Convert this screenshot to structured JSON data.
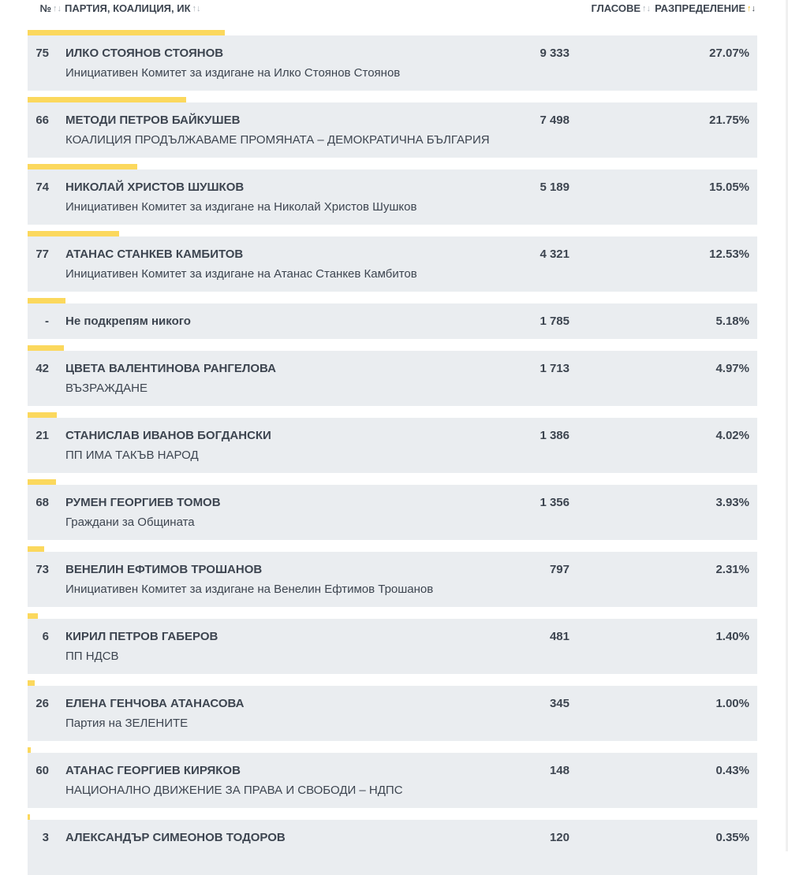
{
  "header": {
    "num": "№",
    "party": "ПАРТИЯ, КОАЛИЦИЯ, ИК",
    "votes": "ГЛАСОВЕ",
    "distribution": "РАЗПРЕДЕЛЕНИЕ",
    "sort_icon": "↑↓"
  },
  "colors": {
    "bar": "#fbd85d",
    "row_bg": "#eaedf0",
    "text": "#3d4550",
    "sort_active": "#f2b300"
  },
  "rows": [
    {
      "num": "75",
      "name": "ИЛКО СТОЯНОВ СТОЯНОВ",
      "sub": "Инициативен Комитет за издигане на Илко Стоянов Стоянов",
      "votes": "9 333",
      "pct": "27.07%",
      "share": 27.07
    },
    {
      "num": "66",
      "name": "МЕТОДИ ПЕТРОВ БАЙКУШЕВ",
      "sub": "КОАЛИЦИЯ ПРОДЪЛЖАВАМЕ ПРОМЯНАТА – ДЕМОКРАТИЧНА БЪЛГАРИЯ",
      "votes": "7 498",
      "pct": "21.75%",
      "share": 21.75
    },
    {
      "num": "74",
      "name": "НИКОЛАЙ ХРИСТОВ ШУШКОВ",
      "sub": "Инициативен Комитет за издигане на Николай Христов Шушков",
      "votes": "5 189",
      "pct": "15.05%",
      "share": 15.05
    },
    {
      "num": "77",
      "name": "АТАНАС СТАНКЕВ КАМБИТОВ",
      "sub": "Инициативен Комитет за издигане на Атанас Станкев Камбитов",
      "votes": "4 321",
      "pct": "12.53%",
      "share": 12.53
    },
    {
      "num": "-",
      "name": "Не подкрепям никого",
      "sub": "",
      "votes": "1 785",
      "pct": "5.18%",
      "share": 5.18
    },
    {
      "num": "42",
      "name": "ЦВЕТА ВАЛЕНТИНОВА РАНГЕЛОВА",
      "sub": "ВЪЗРАЖДАНЕ",
      "votes": "1 713",
      "pct": "4.97%",
      "share": 4.97
    },
    {
      "num": "21",
      "name": "СТАНИСЛАВ ИВАНОВ БОГДАНСКИ",
      "sub": "ПП ИМА ТАКЪВ НАРОД",
      "votes": "1 386",
      "pct": "4.02%",
      "share": 4.02
    },
    {
      "num": "68",
      "name": "РУМЕН ГЕОРГИЕВ ТОМОВ",
      "sub": "Граждани за Общината",
      "votes": "1 356",
      "pct": "3.93%",
      "share": 3.93
    },
    {
      "num": "73",
      "name": "ВЕНЕЛИН ЕФТИМОВ ТРОШАНОВ",
      "sub": "Инициативен Комитет за издигане на Венелин Ефтимов Трошанов",
      "votes": "797",
      "pct": "2.31%",
      "share": 2.31
    },
    {
      "num": "6",
      "name": "КИРИЛ ПЕТРОВ ГАБЕРОВ",
      "sub": "ПП НДСВ",
      "votes": "481",
      "pct": "1.40%",
      "share": 1.4
    },
    {
      "num": "26",
      "name": "ЕЛЕНА ГЕНЧОВА АТАНАСОВА",
      "sub": "Партия на ЗЕЛЕНИТЕ",
      "votes": "345",
      "pct": "1.00%",
      "share": 1.0
    },
    {
      "num": "60",
      "name": "АТАНАС ГЕОРГИЕВ КИРЯКОВ",
      "sub": "НАЦИОНАЛНО ДВИЖЕНИЕ ЗА ПРАВА И СВОБОДИ – НДПС",
      "votes": "148",
      "pct": "0.43%",
      "share": 0.43
    },
    {
      "num": "3",
      "name": "АЛЕКСАНДЪР СИМЕОНОВ ТОДОРОВ",
      "sub": "",
      "votes": "120",
      "pct": "0.35%",
      "share": 0.35
    }
  ]
}
